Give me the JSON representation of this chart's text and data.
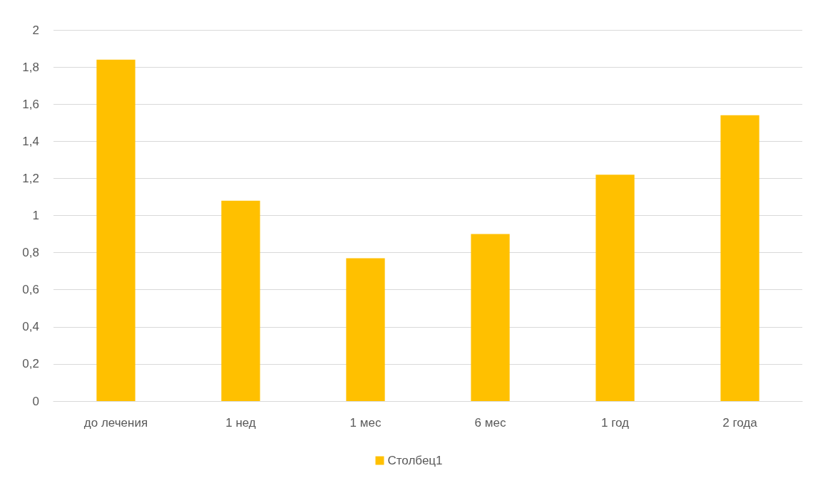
{
  "chart_data": {
    "type": "bar",
    "categories": [
      "до лечения",
      "1 нед",
      "1 мес",
      "6 мес",
      "1 год",
      "2 года"
    ],
    "series": [
      {
        "name": "Столбец1",
        "color": "#ffc000",
        "values": [
          1.84,
          1.08,
          0.77,
          0.9,
          1.22,
          1.54
        ]
      }
    ],
    "ylim": [
      0,
      2
    ],
    "yticks": [
      0,
      {
        "value": 0.2,
        "label": "0,2"
      },
      {
        "value": 0.4,
        "label": "0,4"
      },
      {
        "value": 0.6,
        "label": "0,6"
      },
      {
        "value": 0.8,
        "label": "0,8"
      },
      1,
      {
        "value": 1.2,
        "label": "1,2"
      },
      {
        "value": 1.4,
        "label": "1,4"
      },
      {
        "value": 1.6,
        "label": "1,6"
      },
      {
        "value": 1.8,
        "label": "1,8"
      },
      2
    ],
    "grid": "y",
    "legend": "bottom"
  }
}
